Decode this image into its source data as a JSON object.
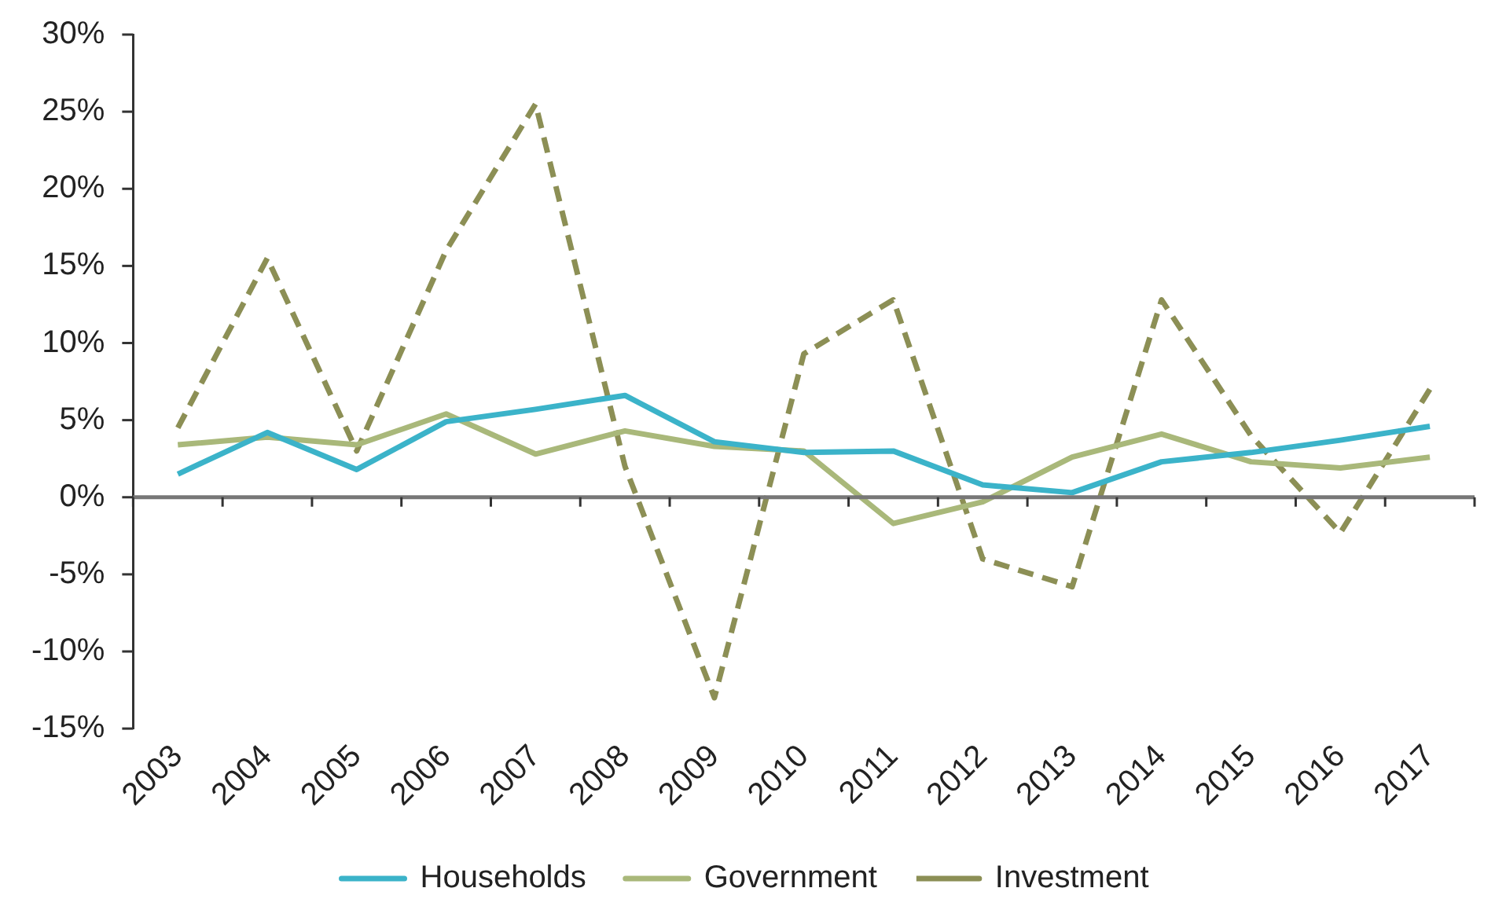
{
  "chart_data": {
    "type": "line",
    "categories": [
      "2003",
      "2004",
      "2005",
      "2006",
      "2007",
      "2008",
      "2009",
      "2010",
      "2011",
      "2012",
      "2013",
      "2014",
      "2015",
      "2016",
      "2017"
    ],
    "series": [
      {
        "name": "Households",
        "color": "#3bb3c9",
        "line_style": "solid",
        "values": [
          1.5,
          4.2,
          1.8,
          4.9,
          5.7,
          6.6,
          3.6,
          2.9,
          3.0,
          0.8,
          0.3,
          2.3,
          2.9,
          3.7,
          4.6
        ]
      },
      {
        "name": "Government",
        "color": "#a9b87a",
        "line_style": "solid",
        "values": [
          3.4,
          3.9,
          3.4,
          5.4,
          2.8,
          4.3,
          3.3,
          3.0,
          -1.7,
          -0.3,
          2.6,
          4.1,
          2.3,
          1.9,
          2.6
        ]
      },
      {
        "name": "Investment",
        "color": "#8c8f55",
        "line_style": "dashed",
        "values": [
          4.5,
          15.5,
          3.0,
          16.0,
          25.5,
          2.0,
          -13.0,
          9.3,
          12.8,
          -4.0,
          -5.8,
          12.8,
          4.0,
          -2.3,
          7.0
        ]
      }
    ],
    "ylim": [
      -15,
      30
    ],
    "yticks": [
      {
        "value": -15,
        "label": "-15%"
      },
      {
        "value": -10,
        "label": "-10%"
      },
      {
        "value": -5,
        "label": "-5%"
      },
      {
        "value": 0,
        "label": "0%"
      },
      {
        "value": 5,
        "label": "5%"
      },
      {
        "value": 10,
        "label": "10%"
      },
      {
        "value": 15,
        "label": "15%"
      },
      {
        "value": 20,
        "label": "20%"
      },
      {
        "value": 25,
        "label": "25%"
      },
      {
        "value": 30,
        "label": "30%"
      }
    ],
    "ref_lines": [
      {
        "axis": "y",
        "value": 0,
        "color": "#777777"
      }
    ],
    "grid": false,
    "legend": "bottom",
    "marker": "none"
  }
}
